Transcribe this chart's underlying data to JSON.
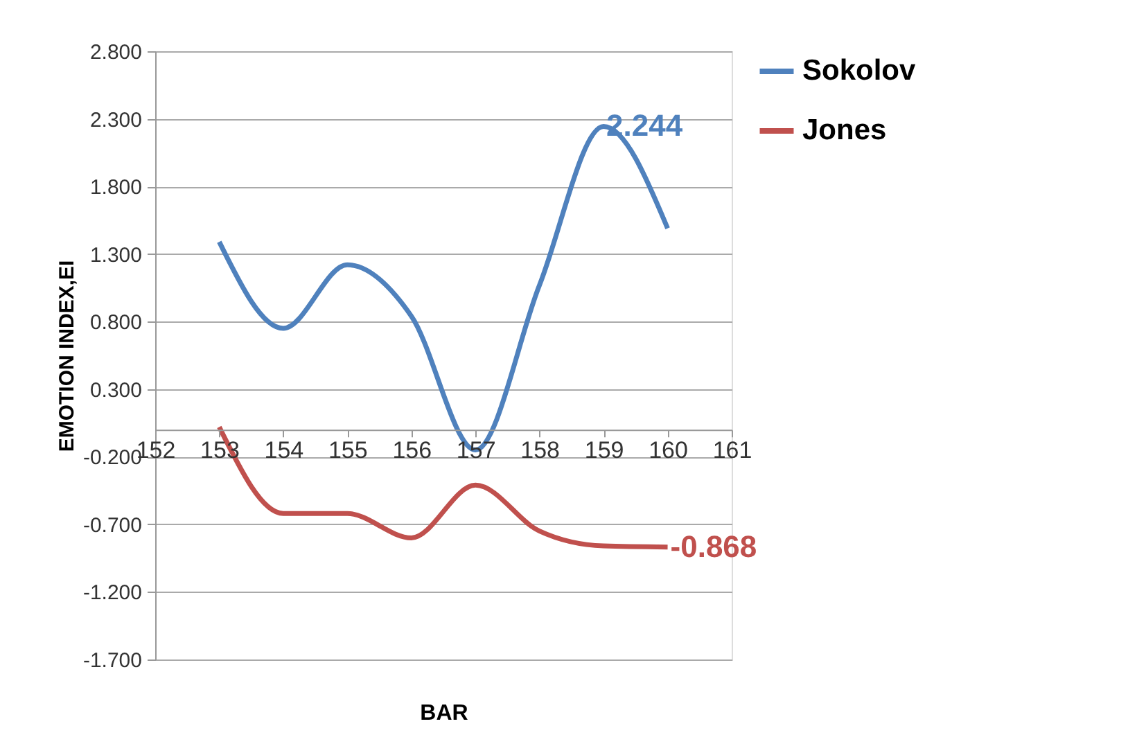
{
  "chart_data": {
    "type": "line",
    "xlabel": "BAR",
    "ylabel": "EMOTION INDEX,EI",
    "x": [
      153,
      154,
      155,
      156,
      157,
      158,
      159,
      160
    ],
    "series": [
      {
        "name": "Sokolov",
        "color": "#4f81bd",
        "values": [
          1.39,
          0.75,
          1.22,
          0.84,
          -0.15,
          1.07,
          2.244,
          1.49
        ],
        "value_labels": [
          null,
          null,
          null,
          null,
          null,
          null,
          "2.244",
          null
        ]
      },
      {
        "name": "Jones",
        "color": "#c0504d",
        "values": [
          0.02,
          -0.62,
          -0.62,
          -0.8,
          -0.41,
          -0.75,
          -0.86,
          -0.868
        ],
        "value_labels": [
          null,
          null,
          null,
          null,
          null,
          null,
          null,
          "-0.868"
        ]
      }
    ],
    "xlim": [
      152,
      161
    ],
    "xticks": [
      152,
      153,
      154,
      155,
      156,
      157,
      158,
      159,
      160,
      161
    ],
    "ylim": [
      -1.7,
      2.8
    ],
    "yticks": [
      {
        "value": -1.7,
        "label": "-1.700"
      },
      {
        "value": -1.2,
        "label": "-1.200"
      },
      {
        "value": -0.7,
        "label": "-0.700"
      },
      {
        "value": -0.2,
        "label": "-0.200"
      },
      {
        "value": 0.3,
        "label": "0.300"
      },
      {
        "value": 0.8,
        "label": "0.800"
      },
      {
        "value": 1.3,
        "label": "1.300"
      },
      {
        "value": 1.8,
        "label": "1.800"
      },
      {
        "value": 2.3,
        "label": "2.300"
      },
      {
        "value": 2.8,
        "label": "2.800"
      }
    ],
    "grid": "y",
    "legend": "right",
    "marker": "none",
    "line_style": "solid"
  }
}
